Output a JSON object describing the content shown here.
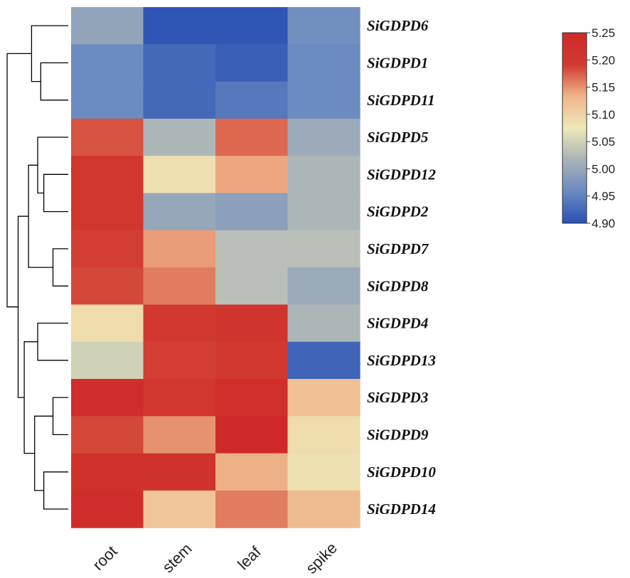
{
  "chart_data": {
    "type": "heatmap",
    "title": "",
    "rows": [
      "SiGDPD6",
      "SiGDPD1",
      "SiGDPD11",
      "SiGDPD5",
      "SiGDPD12",
      "SiGDPD2",
      "SiGDPD7",
      "SiGDPD8",
      "SiGDPD4",
      "SiGDPD13",
      "SiGDPD3",
      "SiGDPD9",
      "SiGDPD10",
      "SiGDPD14"
    ],
    "columns": [
      "root",
      "stem",
      "leaf",
      "spike"
    ],
    "values": [
      [
        4.995,
        4.905,
        4.905,
        4.965
      ],
      [
        4.96,
        4.925,
        4.915,
        4.96
      ],
      [
        4.96,
        4.925,
        4.94,
        4.96
      ],
      [
        5.18,
        5.02,
        5.17,
        5.005
      ],
      [
        5.205,
        5.085,
        5.14,
        5.02
      ],
      [
        5.205,
        5.0,
        4.99,
        5.02
      ],
      [
        5.19,
        5.145,
        5.03,
        5.03
      ],
      [
        5.185,
        5.16,
        5.03,
        5.005
      ],
      [
        5.09,
        5.195,
        5.215,
        5.02
      ],
      [
        5.05,
        5.19,
        5.195,
        4.92
      ],
      [
        5.24,
        5.205,
        5.23,
        5.12
      ],
      [
        5.185,
        5.15,
        5.25,
        5.09
      ],
      [
        5.225,
        5.22,
        5.135,
        5.085
      ],
      [
        5.235,
        5.115,
        5.16,
        5.125
      ]
    ],
    "colorbar": {
      "min": 4.9,
      "max": 5.25,
      "ticks": [
        "5.25",
        "5.20",
        "5.15",
        "5.10",
        "5.05",
        "5.00",
        "4.95",
        "4.90"
      ],
      "colors": [
        "#2a50b4",
        "#6a8ac0",
        "#a9b3b7",
        "#eee9b9",
        "#efb58a",
        "#d13a30",
        "#cf2a2a"
      ]
    },
    "dendrogram": {
      "nodes": [
        {
          "children": [
            "SiGDPD1",
            "SiGDPD11"
          ],
          "height": 0.45
        },
        {
          "children": [
            0,
            "SiGDPD6"
          ],
          "height": 0.6
        },
        {
          "children": [
            "SiGDPD12",
            "SiGDPD2"
          ],
          "height": 0.4
        },
        {
          "children": [
            2,
            "SiGDPD5"
          ],
          "height": 0.5
        },
        {
          "children": [
            "SiGDPD7",
            "SiGDPD8"
          ],
          "height": 0.25
        },
        {
          "children": [
            3,
            4
          ],
          "height": 0.65
        },
        {
          "children": [
            "SiGDPD4",
            "SiGDPD13"
          ],
          "height": 0.5
        },
        {
          "children": [
            "SiGDPD3",
            "SiGDPD9"
          ],
          "height": 0.25
        },
        {
          "children": [
            "SiGDPD10",
            "SiGDPD14"
          ],
          "height": 0.4
        },
        {
          "children": [
            7,
            8
          ],
          "height": 0.55
        },
        {
          "children": [
            6,
            9
          ],
          "height": 0.72
        },
        {
          "children": [
            5,
            10
          ],
          "height": 0.82
        },
        {
          "children": [
            1,
            11
          ],
          "height": 1.0
        }
      ]
    }
  }
}
